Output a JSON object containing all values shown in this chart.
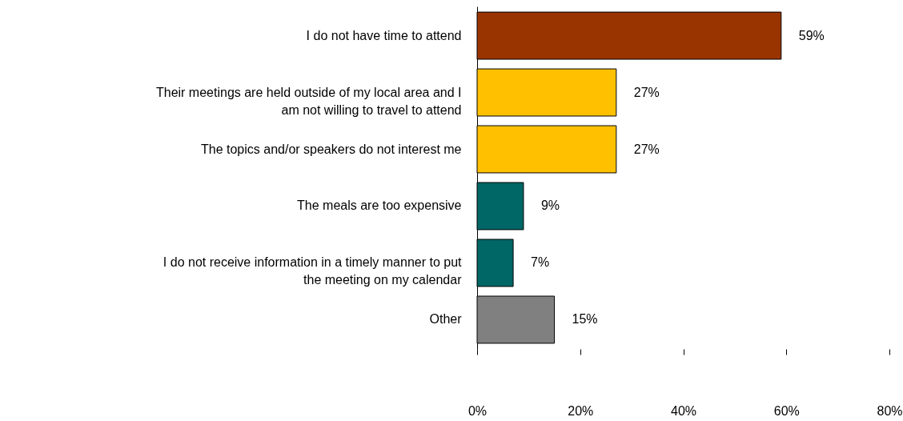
{
  "chart_data": {
    "type": "bar",
    "orientation": "horizontal",
    "categories": [
      "I do not have time to attend",
      "Their meetings are held outside of my local area and I am not willing to travel to attend",
      "The topics and/or speakers do not interest me",
      "The meals are too expensive",
      "I do not receive information in a timely manner to put the meeting on my calendar",
      "Other"
    ],
    "values": [
      59,
      27,
      27,
      9,
      7,
      15
    ],
    "colors": [
      "#993300",
      "#ffc000",
      "#ffc000",
      "#006666",
      "#006666",
      "#808080"
    ],
    "value_labels": [
      "59%",
      "27%",
      "27%",
      "9%",
      "7%",
      "15%"
    ],
    "xlim": [
      0,
      80
    ],
    "xticks": [
      {
        "value": 0,
        "label": "0%"
      },
      {
        "value": 20,
        "label": "20%"
      },
      {
        "value": 40,
        "label": "40%"
      },
      {
        "value": 60,
        "label": "60%"
      },
      {
        "value": 80,
        "label": "80%"
      }
    ],
    "grid": false
  }
}
